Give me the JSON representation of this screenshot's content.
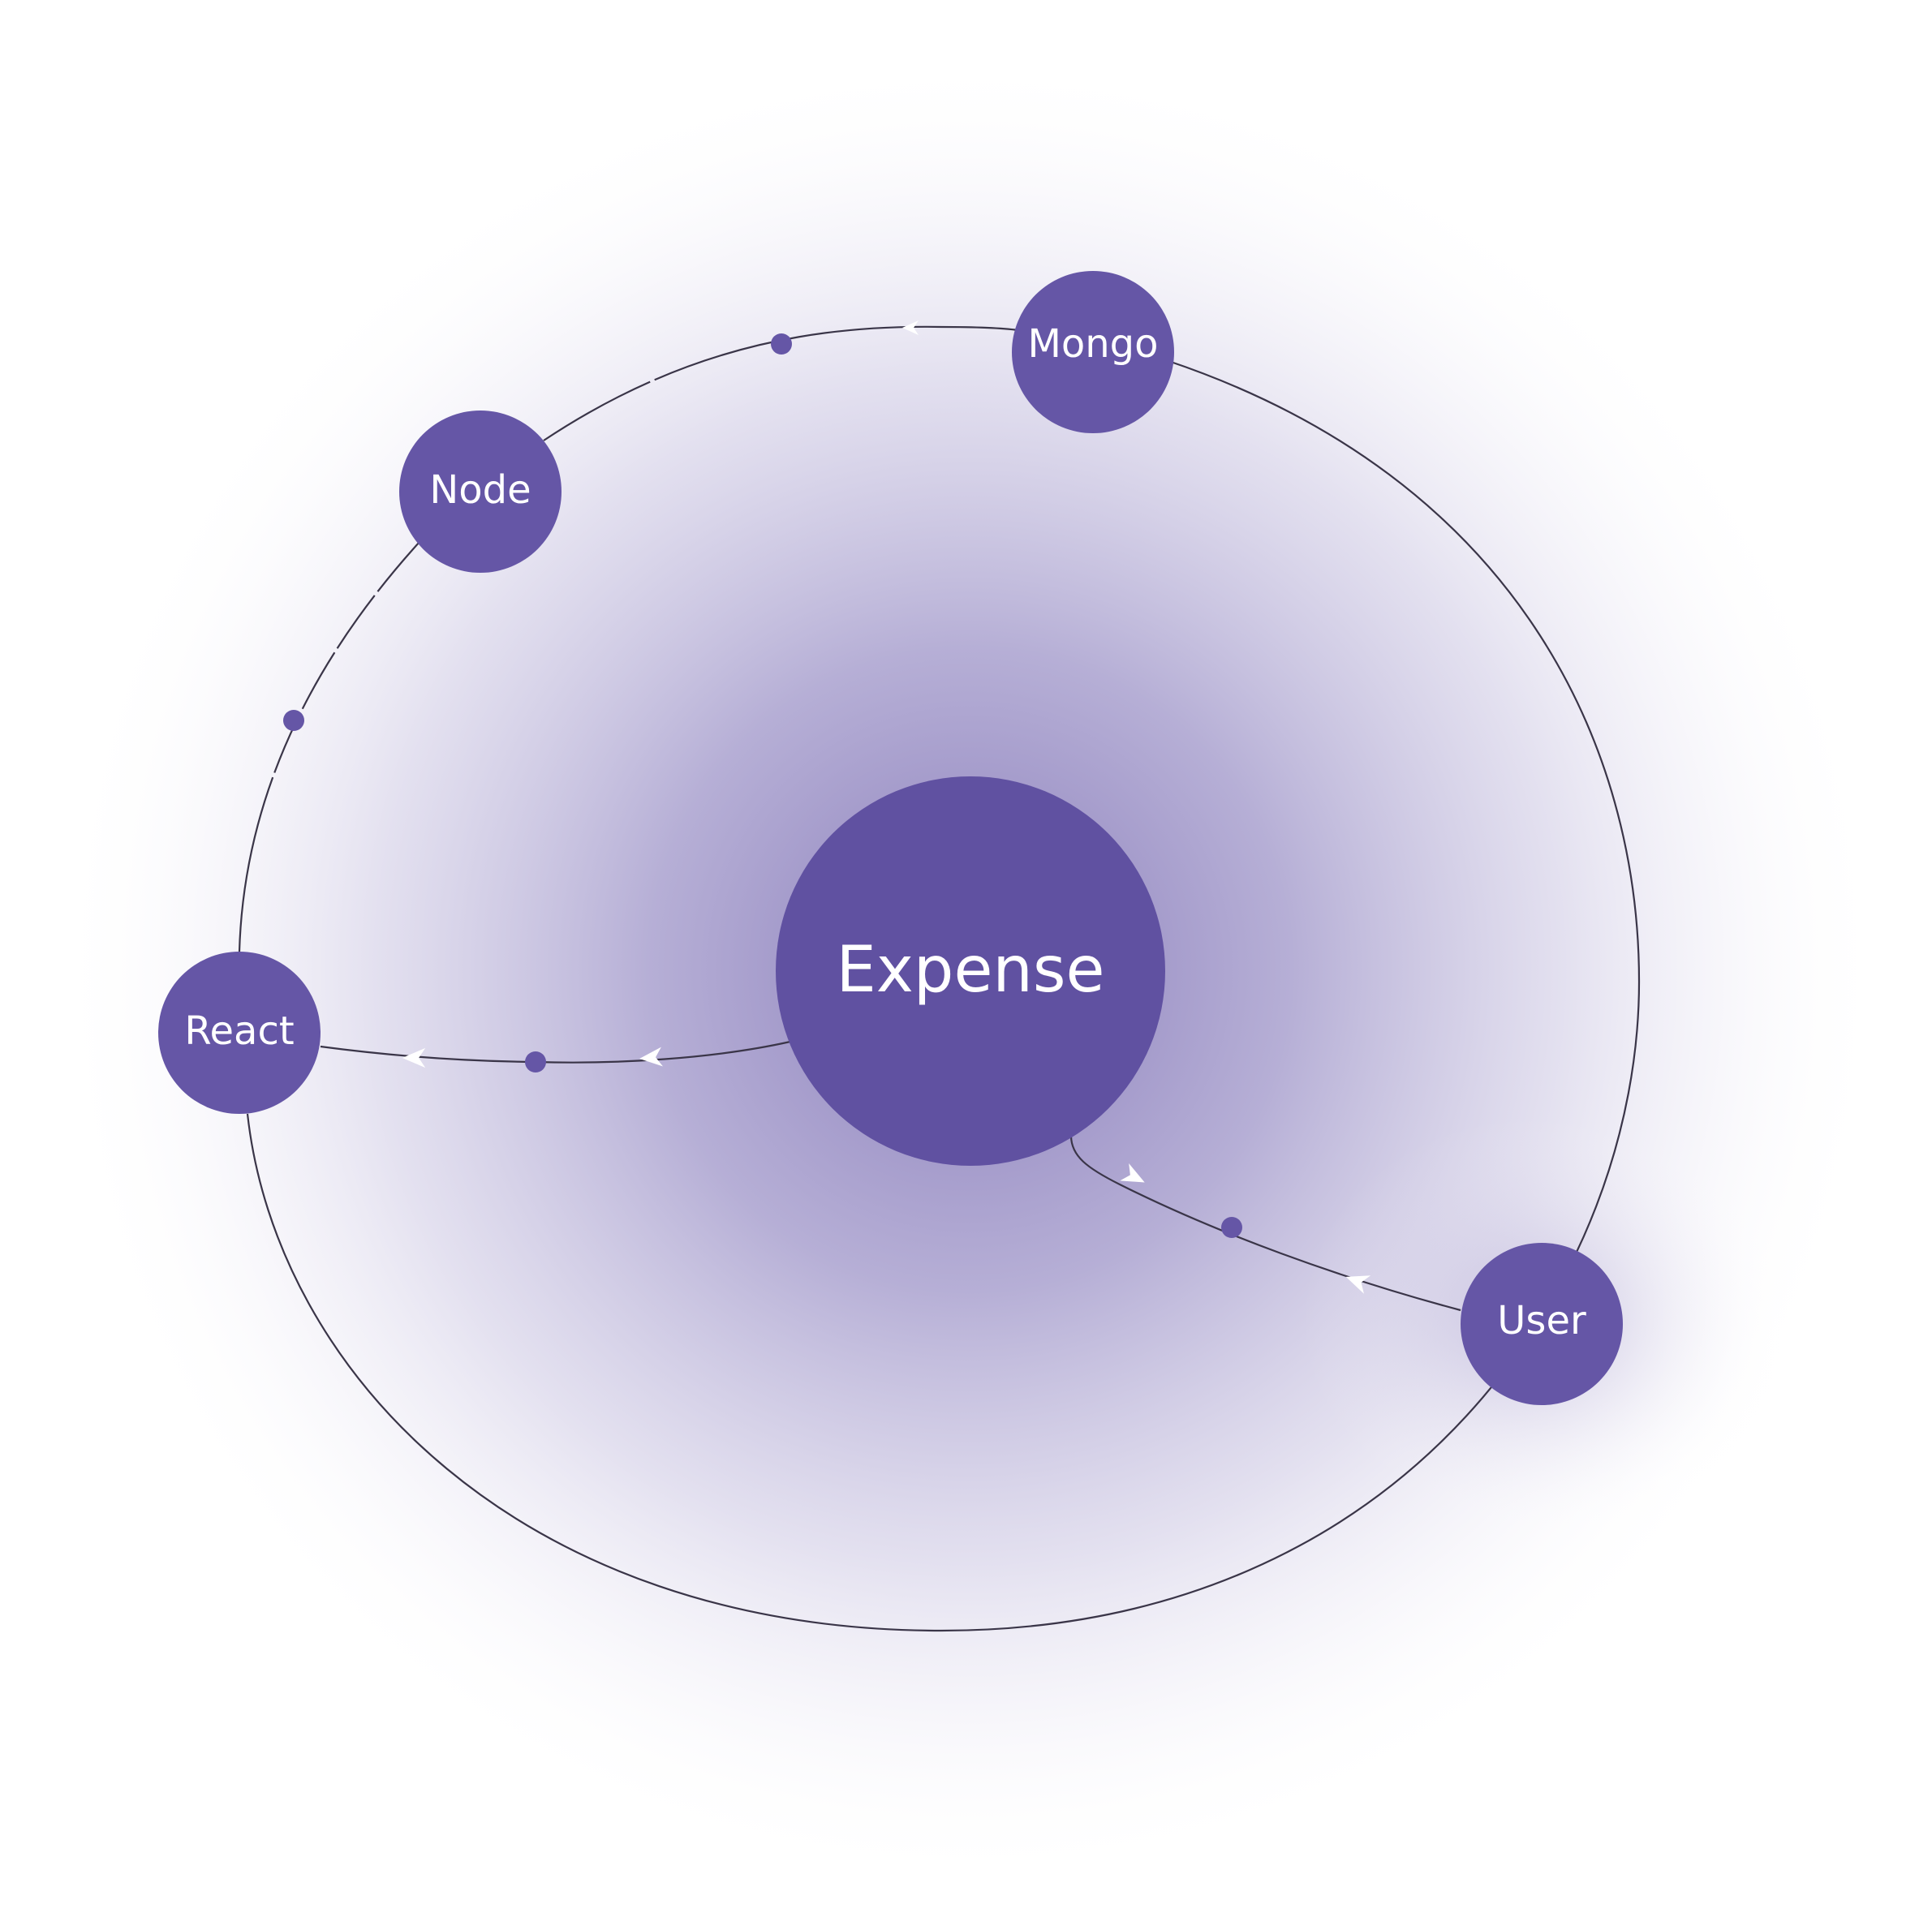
{
  "diagram": {
    "colors": {
      "node_fill": "#6556a6",
      "center_fill": "#6051a1",
      "glow": "#7b6db5",
      "line": "#3a3548",
      "label": "#ffffff",
      "arrow": "#ffffff"
    },
    "center_node": {
      "label": "Expense"
    },
    "nodes": {
      "mongo": {
        "label": "Mongo"
      },
      "node": {
        "label": "Node"
      },
      "react": {
        "label": "React"
      },
      "user": {
        "label": "User"
      }
    },
    "connections": [
      {
        "from": "User",
        "to": "Expense"
      },
      {
        "from": "Expense",
        "to": "React"
      },
      {
        "from": "Mongo",
        "to": "Node"
      },
      {
        "from": "Node",
        "to": "React"
      }
    ]
  }
}
